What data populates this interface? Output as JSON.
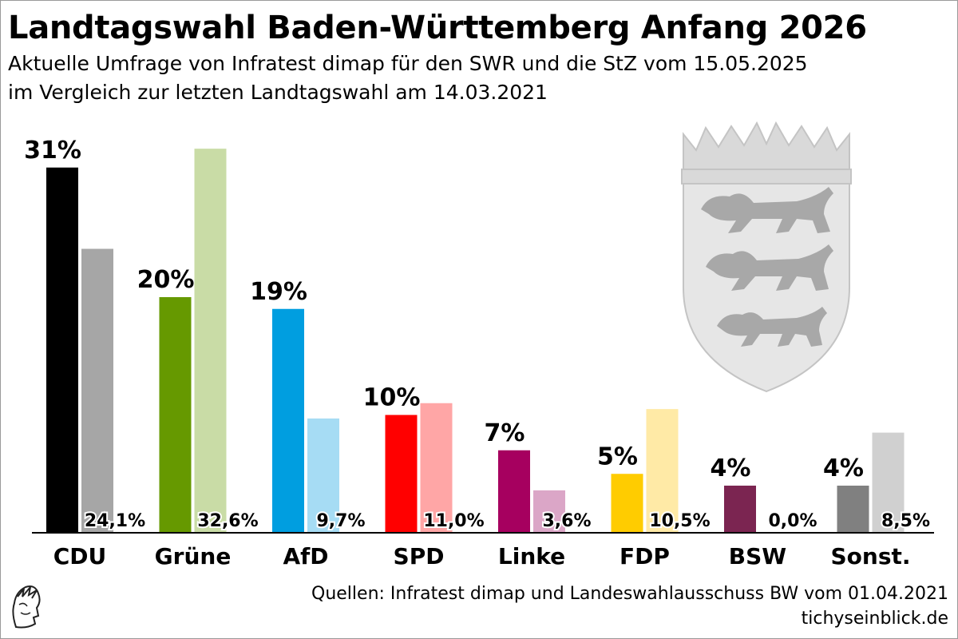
{
  "title": "Landtagswahl Baden-Württemberg Anfang 2026",
  "subtitle_line1": "Aktuelle Umfrage von Infratest dimap für den SWR und die StZ vom 15.05.2025",
  "subtitle_line2": "im Vergleich zur letzten Landtagswahl am 14.03.2021",
  "source": "Quellen: Infratest dimap und Landeswahlausschuss BW vom 01.04.2021",
  "website": "tichyseinblick.de",
  "crest_icon": "baden-wuerttemberg-coat-of-arms-icon",
  "logo_icon": "tichys-einblick-head-logo-icon",
  "chart_data": {
    "type": "bar",
    "categories": [
      "CDU",
      "Grüne",
      "AfD",
      "SPD",
      "Linke",
      "FDP",
      "BSW",
      "Sonst."
    ],
    "series": [
      {
        "values": [
          31,
          20,
          19,
          10,
          7,
          5,
          4,
          4
        ],
        "labels": [
          "31%",
          "20%",
          "19%",
          "10%",
          "7%",
          "5%",
          "4%",
          "4%"
        ],
        "colors": [
          "#000000",
          "#669900",
          "#009ee0",
          "#ff0000",
          "#a6005f",
          "#ffcc00",
          "#7b2551",
          "#808080"
        ]
      },
      {
        "values": [
          24.1,
          32.6,
          9.7,
          11.0,
          3.6,
          10.5,
          0.0,
          8.5
        ],
        "labels": [
          "24,1%",
          "32,6%",
          "9,7%",
          "11,0%",
          "3,6%",
          "10,5%",
          "0,0%",
          "8,5%"
        ],
        "colors": [
          "#a6a6a6",
          "#c9dca6",
          "#a6dcf4",
          "#ffa6a6",
          "#dba6c7",
          "#ffeaa6",
          "#d4b8c6",
          "#d0d0d0"
        ]
      }
    ],
    "ylim": [
      0,
      33
    ],
    "grid": false,
    "legend": "none"
  }
}
